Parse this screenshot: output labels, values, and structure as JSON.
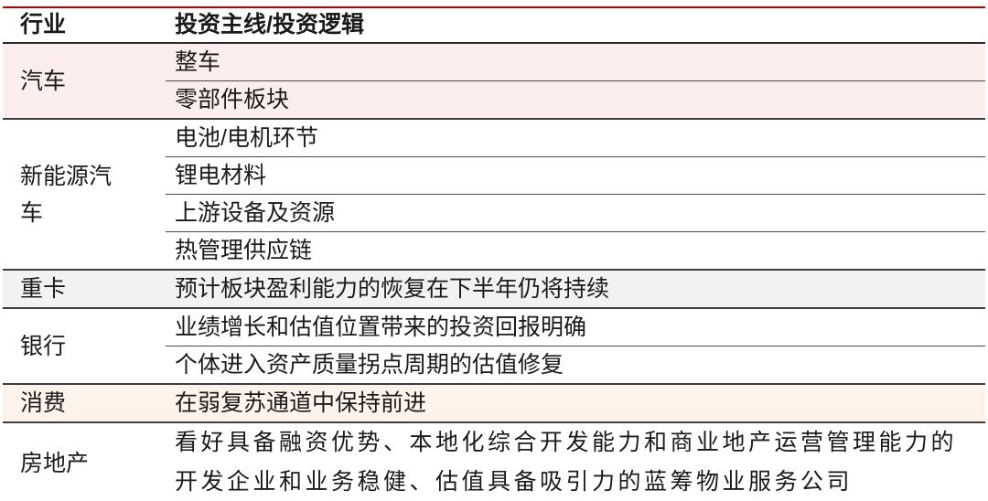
{
  "table": {
    "header": {
      "industry": "行业",
      "theme": "投资主线/投资逻辑"
    },
    "sections": [
      {
        "industry": "汽车",
        "bg": "#fdeeee",
        "items": [
          "整车",
          "零部件板块"
        ]
      },
      {
        "industry": "新能源汽车",
        "bg": "#ffffff",
        "items": [
          "电池/电机环节",
          "锂电材料",
          "上游设备及资源",
          "热管理供应链"
        ]
      },
      {
        "industry": "重卡",
        "bg": "#f2f2f2",
        "items": [
          "预计板块盈利能力的恢复在下半年仍将持续"
        ]
      },
      {
        "industry": "银行",
        "bg": "#ffffff",
        "items": [
          "业绩增长和估值位置带来的投资回报明确",
          "个体进入资产质量拐点周期的估值修复"
        ]
      },
      {
        "industry": "消费",
        "bg": "#fdf3eb",
        "items": [
          "在弱复苏通道中保持前进"
        ]
      },
      {
        "industry": "房地产",
        "bg": "#ffffff",
        "items": [
          "看好具备融资优势、本地化综合开发能力和商业地产运营管理能力的开发企业和业务稳健、估值具备吸引力的蓝筹物业服务公司"
        ]
      }
    ],
    "colors": {
      "accent_red": "#c00000",
      "rule_dark": "#3d3d3d",
      "row_pink": "#fdeeee",
      "row_gray": "#f2f2f2",
      "row_peach": "#fdf3eb",
      "text": "#1a1a1a"
    }
  }
}
